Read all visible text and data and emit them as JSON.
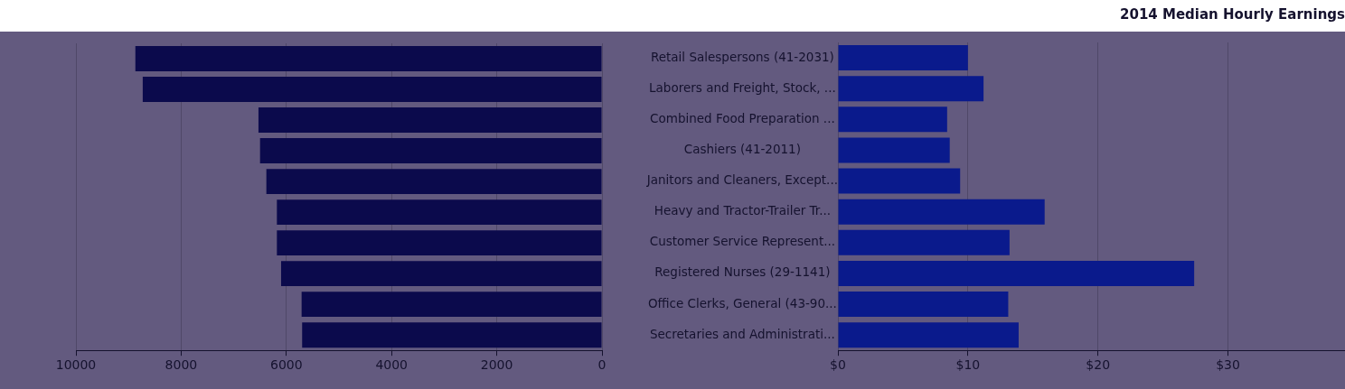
{
  "chart_data": [
    {
      "type": "bar",
      "orientation": "horizontal",
      "categories": [
        null,
        null,
        null,
        null,
        null,
        null,
        null,
        null,
        null,
        null
      ],
      "values": [
        8870,
        8730,
        6530,
        6500,
        6380,
        6180,
        6180,
        6100,
        5710,
        5700
      ],
      "color": "#0b0a4c",
      "xlim": [
        10000,
        0
      ],
      "xticks": [
        10000,
        8000,
        6000,
        4000,
        2000,
        0
      ],
      "grid": "x",
      "tick_labels": "x"
    },
    {
      "type": "bar",
      "orientation": "horizontal",
      "title": "2014 Median Hourly Earnings",
      "categories": [
        "Retail Salespersons (41-2031)",
        "Laborers and Freight, Stock, ...",
        "Combined Food Preparation ...",
        "Cashiers (41-2011)",
        "Janitors and Cleaners, Except...",
        "Heavy and Tractor-Trailer Tr...",
        "Customer Service Represent...",
        "Registered Nurses (29-1141)",
        "Office Clerks, General (43-90...",
        "Secretaries and Administrati..."
      ],
      "values": [
        10.0,
        11.2,
        8.4,
        8.6,
        9.4,
        15.9,
        13.2,
        27.4,
        13.1,
        13.9
      ],
      "color": "#0a1a8c",
      "xlim": [
        0,
        39
      ],
      "xticks": [
        {
          "value": 0,
          "label": "$0"
        },
        {
          "value": 10,
          "label": "$10"
        },
        {
          "value": 20,
          "label": "$20"
        },
        {
          "value": 30,
          "label": "$30"
        }
      ],
      "grid": "x"
    }
  ]
}
